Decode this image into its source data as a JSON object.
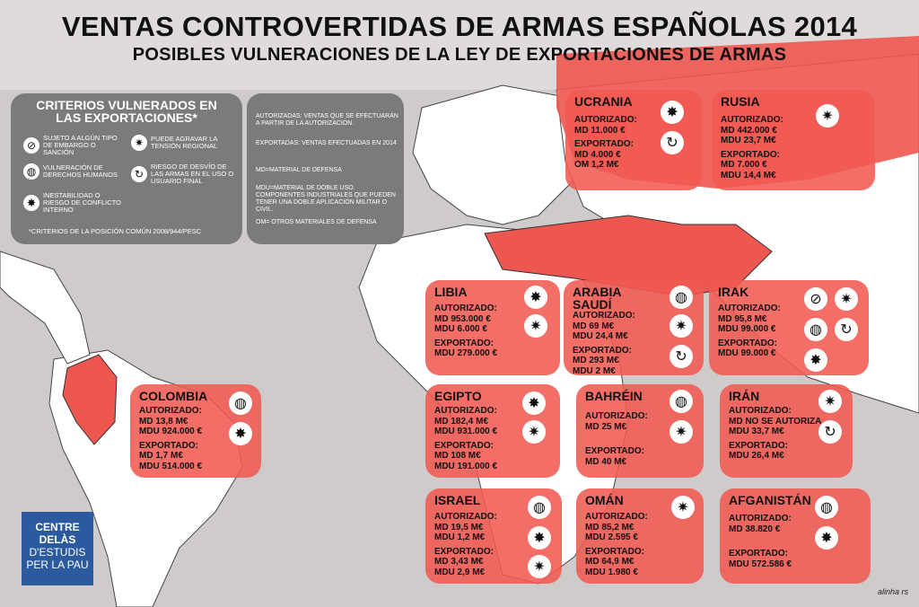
{
  "title": "VENTAS CONTROVERTIDAS DE ARMAS ESPAÑOLAS 2014",
  "subtitle": "POSIBLES VULNERACIONES DE LA LEY DE EXPORTACIONES DE ARMAS",
  "criteria": {
    "heading": "CRITERIOS VULNERADOS EN LAS EXPORTACIONES*",
    "items": [
      {
        "icon": "no-weapon-icon",
        "label": "SUJETO A ALGÚN TIPO DE EMBARGO O SANCIÓN"
      },
      {
        "icon": "explosion-icon",
        "label": "PUEDE AGRAVAR LA TENSIÓN REGIONAL"
      },
      {
        "icon": "globe-icon",
        "label": "VULNERACIÓN DE DERECHOS HUMANOS"
      },
      {
        "icon": "diversion-arrow-icon",
        "label": "RIESGO DE DESVÍO DE LAS ARMAS EN EL USO O USUARIO FINAL"
      },
      {
        "icon": "blast-icon",
        "label": "INESTABILIDAD O RIESGO DE CONFLICTO INTERNO"
      }
    ],
    "footnote": "*CRITERIOS DE LA POSICIÓN COMÚN 2008/944/PESC"
  },
  "legend": {
    "autorizadas": "AUTORIZADAS: VENTAS QUE SE EFECTUARÁN A PARTIR DE LA AUTORIZACIÓN.",
    "exportadas": "EXPORTADAS: VENTAS EFECTUADAS EN 2014",
    "md": "MD=MATERIAL DE DEFENSA",
    "mdu": "MDU=MATERIAL DE DOBLE USO. COMPONENTES INDUSTRIALES QUE PUEDEN TENER UNA DOBLE APLICACIÓN MILITAR O CIVIL.",
    "om": "OM= OTROS MATERIALES DE DEFENSA"
  },
  "countries": {
    "ucrania": {
      "name": "UCRANIA",
      "lines": [
        "AUTORIZADO:",
        "MD 11.000 €",
        "EXPORTADO:",
        "MD 4.000 €",
        "OM 1,2 M€"
      ]
    },
    "rusia": {
      "name": "RUSIA",
      "lines": [
        "AUTORIZADO:",
        "MD 442.000 €",
        "MDU 23,7 M€",
        "EXPORTADO:",
        "MD 7.000 €",
        "MDU 14,4 M€"
      ]
    },
    "libia": {
      "name": "LIBIA",
      "lines": [
        "AUTORIZADO:",
        "MD 953.000 €",
        "MDU 6.000 €",
        "EXPORTADO:",
        "MDU 279.000 €"
      ]
    },
    "arabia": {
      "name": "ARABIA SAUDÍ",
      "lines": [
        "AUTORIZADO:",
        "MD 69 M€",
        "MDU 24,4 M€",
        "EXPORTADO:",
        "MD 293 M€",
        "MDU 2 M€"
      ]
    },
    "irak": {
      "name": "IRAK",
      "lines": [
        "AUTORIZADO:",
        "MD 95,8 M€",
        "MDU 99.000 €",
        "EXPORTADO:",
        "MDU 99.000 €"
      ]
    },
    "colombia": {
      "name": "COLOMBIA",
      "lines": [
        "AUTORIZADO:",
        "MD 13,8 M€",
        "MDU 924.000 €",
        "EXPORTADO:",
        "MD 1,7 M€",
        "MDU 514.000 €"
      ]
    },
    "egipto": {
      "name": "EGIPTO",
      "lines": [
        "AUTORIZADO:",
        "MD 182,4 M€",
        "MDU 931.000 €",
        "EXPORTADO:",
        "MD 108 M€",
        "MDU 191.000 €"
      ]
    },
    "bahrein": {
      "name": "BAHRÉIN",
      "lines": [
        "AUTORIZADO:",
        "MD 25 M€",
        "EXPORTADO:",
        "MD 40 M€"
      ]
    },
    "iran": {
      "name": "IRÁN",
      "lines": [
        "AUTORIZADO:",
        "MD NO SE AUTORIZA",
        "MDU 33,7 M€",
        "EXPORTADO:",
        "MDU 26,4 M€"
      ]
    },
    "israel": {
      "name": "ISRAEL",
      "lines": [
        "AUTORIZADO:",
        "MD 19,5 M€",
        "MDU 1,2 M€",
        "EXPORTADO:",
        "MD 3,43 M€",
        "MDU 2,9 M€"
      ]
    },
    "oman": {
      "name": "OMÁN",
      "lines": [
        "AUTORIZADO:",
        "MD 85,2 M€",
        "MDU 2.595 €",
        "EXPORTADO:",
        "MD 64,9 M€",
        "MDU 1.980 €"
      ]
    },
    "afganistan": {
      "name": "AFGANISTÁN",
      "lines": [
        "AUTORIZADO:",
        "MD 38.820 €",
        "EXPORTADO:",
        "MDU 572.586 €"
      ]
    }
  },
  "logo": {
    "line1": "CENTRE DELÀS",
    "line2": "D'ESTUDIS",
    "line3": "PER LA PAU"
  },
  "signature": "alinha rs",
  "colors": {
    "card": "#f05a52",
    "panel": "#7b7b7b",
    "map_bg": "#cfcbcb",
    "logo": "#2c5a9e"
  }
}
